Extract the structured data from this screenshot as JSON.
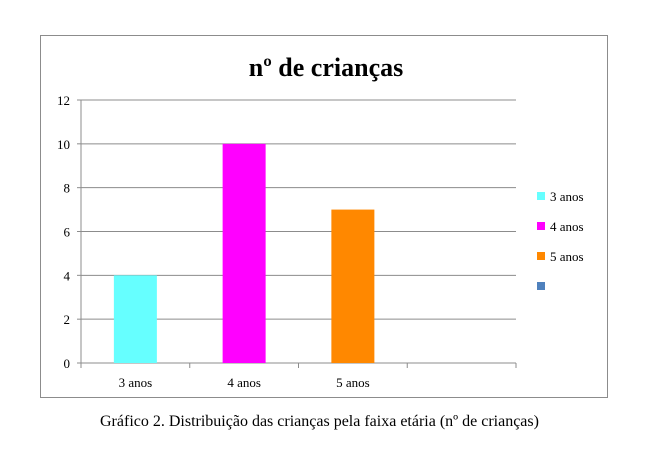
{
  "caption": "Gráfico 2. Distribuição das crianças pela faixa etária (nº de crianças)",
  "chart_data": {
    "type": "bar",
    "title": "nº de crianças",
    "xlabel": "",
    "ylabel": "",
    "categories": [
      "3 anos",
      "4 anos",
      "5 anos",
      ""
    ],
    "series": [
      {
        "name": "3 anos",
        "values": [
          4,
          null,
          null,
          null
        ],
        "color": "#66ffff"
      },
      {
        "name": "4 anos",
        "values": [
          null,
          10,
          null,
          null
        ],
        "color": "#ff00ff"
      },
      {
        "name": "5 anos",
        "values": [
          null,
          null,
          7,
          null
        ],
        "color": "#ff8800"
      },
      {
        "name": "",
        "values": [
          null,
          null,
          null,
          null
        ],
        "color": "#4f81bd"
      }
    ],
    "ylim": [
      0,
      12
    ],
    "yticks": [
      0,
      2,
      4,
      6,
      8,
      10,
      12
    ],
    "grid": true,
    "legend": "right"
  }
}
